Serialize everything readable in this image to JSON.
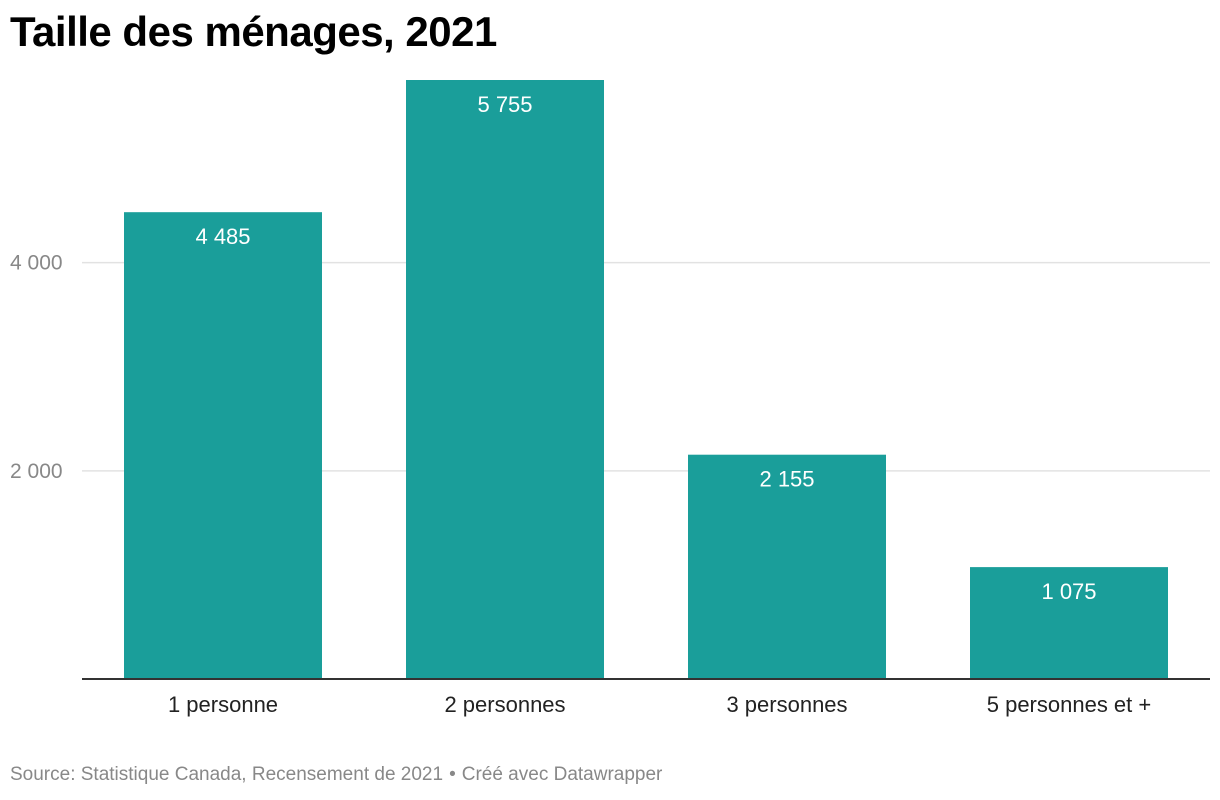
{
  "title": "Taille des ménages, 2021",
  "footer": {
    "source": "Source: Statistique Canada, Recensement de 2021",
    "separator": "•",
    "credit": "Créé avec Datawrapper"
  },
  "colors": {
    "bar": "#1a9e9a",
    "gridline": "#e2e2e2",
    "baseline": "#333333",
    "tick_label": "#888888",
    "category_label": "#222222",
    "value_label": "#ffffff"
  },
  "chart_data": {
    "type": "bar",
    "categories": [
      "1 personne",
      "2 personnes",
      "3 personnes",
      "5 personnes et +"
    ],
    "values": [
      4485,
      5755,
      2155,
      1075
    ],
    "value_labels": [
      "4 485",
      "5 755",
      "2 155",
      "1 075"
    ],
    "yticks": [
      2000,
      4000
    ],
    "ytick_labels": [
      "2 000",
      "4 000"
    ],
    "ylim": [
      0,
      5755
    ],
    "grid": true,
    "xlabel": "",
    "ylabel": ""
  }
}
